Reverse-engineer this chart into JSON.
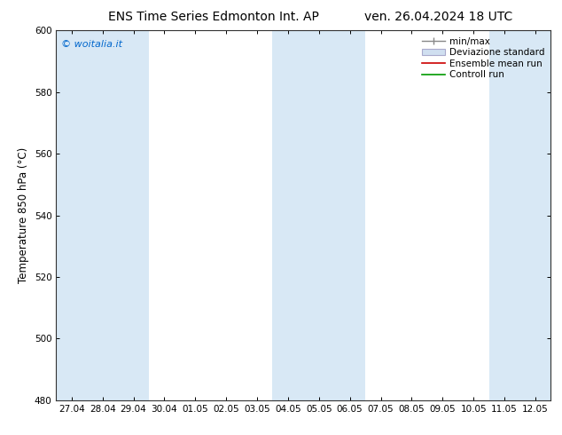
{
  "title_left": "ENS Time Series Edmonton Int. AP",
  "title_right": "ven. 26.04.2024 18 UTC",
  "ylabel": "Temperature 850 hPa (°C)",
  "ylim": [
    480,
    600
  ],
  "yticks": [
    480,
    500,
    520,
    540,
    560,
    580,
    600
  ],
  "x_labels": [
    "27.04",
    "28.04",
    "29.04",
    "30.04",
    "01.05",
    "02.05",
    "03.05",
    "04.05",
    "05.05",
    "06.05",
    "07.05",
    "08.05",
    "09.05",
    "10.05",
    "11.05",
    "12.05"
  ],
  "watermark": "© woitalia.it",
  "watermark_color": "#0066cc",
  "band_color": "#d8e8f5",
  "band_indices": [
    0,
    1,
    2,
    8,
    9,
    14,
    15
  ],
  "background_color": "#ffffff",
  "plot_bg_color": "#ffffff",
  "title_fontsize": 10,
  "tick_fontsize": 7.5,
  "ylabel_fontsize": 8.5,
  "legend_fontsize": 7.5
}
